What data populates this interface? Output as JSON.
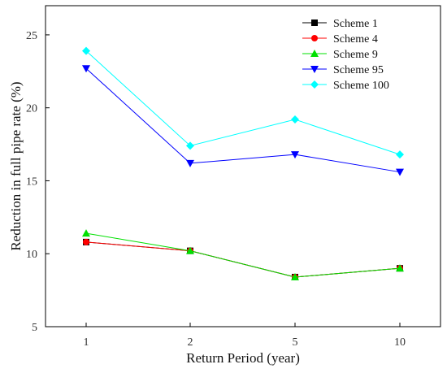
{
  "chart_data": {
    "type": "line",
    "title": "",
    "xlabel": "Return Period (year)",
    "ylabel": "Reduction in full pipe rate (%)",
    "categories": [
      "1",
      "2",
      "5",
      "10"
    ],
    "ylim": [
      5,
      27
    ],
    "yticks": [
      5,
      10,
      15,
      20,
      25
    ],
    "grid": false,
    "legend_position": "top-right",
    "series": [
      {
        "name": "Scheme 1",
        "values": [
          10.8,
          10.2,
          8.4,
          9.0
        ],
        "color": "#000000",
        "marker": "square"
      },
      {
        "name": "Scheme 4",
        "values": [
          10.8,
          10.2,
          8.4,
          9.0
        ],
        "color": "#ff0000",
        "marker": "circle"
      },
      {
        "name": "Scheme 9",
        "values": [
          11.4,
          10.2,
          8.4,
          9.0
        ],
        "color": "#00e000",
        "marker": "triangle-up"
      },
      {
        "name": "Scheme 95",
        "values": [
          22.7,
          16.2,
          16.8,
          15.6
        ],
        "color": "#0000ff",
        "marker": "triangle-down"
      },
      {
        "name": "Scheme 100",
        "values": [
          23.9,
          17.4,
          19.2,
          16.8
        ],
        "color": "#00ffff",
        "marker": "diamond"
      }
    ]
  }
}
